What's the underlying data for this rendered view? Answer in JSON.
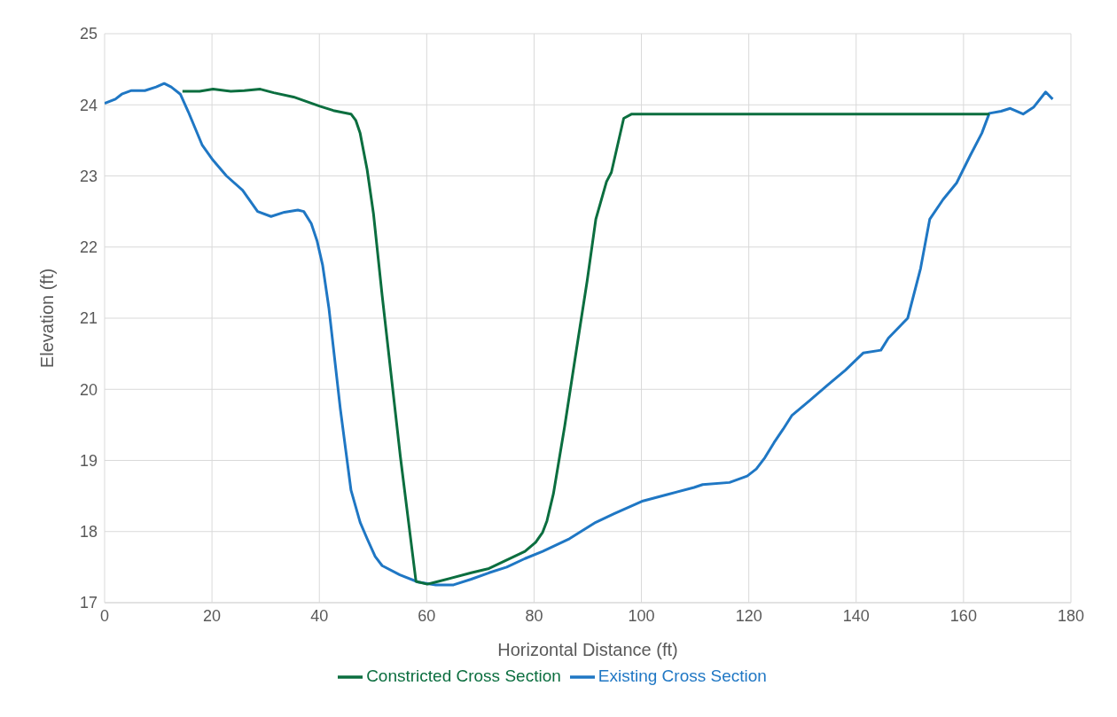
{
  "chart_data": {
    "type": "line",
    "xlabel": "Horizontal Distance (ft)",
    "ylabel": "Elevation (ft)",
    "xlim": [
      0,
      180
    ],
    "xticks": [
      0,
      20,
      40,
      60,
      80,
      100,
      120,
      140,
      160,
      180
    ],
    "ylim": [
      17,
      25
    ],
    "yticks": [
      17,
      18,
      19,
      20,
      21,
      22,
      23,
      24,
      25
    ],
    "grid": true,
    "legend": "bottom",
    "marker": "none",
    "line_style": "solid",
    "series": [
      {
        "name": "Existing Cross Section",
        "color": "#1f77c4",
        "x": [
          0,
          2,
          3.2,
          5,
          7.5,
          9.6,
          11.1,
          12.4,
          14.1,
          15.6,
          18.2,
          20.2,
          22.7,
          25.7,
          28.5,
          31,
          33.5,
          36,
          37.1,
          38.5,
          39.6,
          40.6,
          41.8,
          43.9,
          45.9,
          47.6,
          48.9,
          50.4,
          51.7,
          55,
          58.4,
          61.7,
          65,
          68.3,
          71.6,
          74.9,
          78.3,
          81.6,
          86.6,
          91.5,
          94.9,
          100.3,
          104.8,
          109.8,
          111.4,
          116.4,
          119.7,
          121.4,
          123,
          124.7,
          126.4,
          128,
          131.3,
          134.7,
          138,
          141.3,
          144.6,
          146,
          149.6,
          152,
          153.7,
          156.2,
          158.7,
          161.2,
          163.4,
          164.8,
          167,
          168.7,
          171.1,
          173.1,
          175.3,
          176.6
        ],
        "values": [
          24.02,
          24.08,
          24.15,
          24.2,
          24.2,
          24.25,
          24.3,
          24.25,
          24.15,
          23.9,
          23.43,
          23.22,
          23,
          22.8,
          22.5,
          22.43,
          22.49,
          22.52,
          22.5,
          22.33,
          22.08,
          21.75,
          21.13,
          19.73,
          18.58,
          18.13,
          17.9,
          17.65,
          17.52,
          17.39,
          17.29,
          17.25,
          17.25,
          17.33,
          17.42,
          17.5,
          17.62,
          17.72,
          17.9,
          18.13,
          18.25,
          18.43,
          18.52,
          18.62,
          18.66,
          18.69,
          18.78,
          18.88,
          19.04,
          19.25,
          19.44,
          19.63,
          19.84,
          20.06,
          20.27,
          20.51,
          20.55,
          20.72,
          21,
          21.7,
          22.39,
          22.67,
          22.9,
          23.28,
          23.6,
          23.88,
          23.91,
          23.95,
          23.87,
          23.97,
          24.18,
          24.08
        ]
      },
      {
        "name": "Constricted Cross Section",
        "color": "#0b6e3f",
        "x": [
          14.5,
          17.7,
          20.2,
          23.5,
          26,
          29,
          31.5,
          35.2,
          40.1,
          42.6,
          45.9,
          46.8,
          47.6,
          48.9,
          50.1,
          51.7,
          55.1,
          58,
          60.1,
          61.7,
          68.3,
          71.6,
          78.3,
          80.3,
          81.6,
          82.4,
          83.6,
          85.7,
          87.9,
          89.9,
          91.5,
          93.5,
          94.4,
          96.7,
          98.2,
          111.4,
          164.8
        ],
        "values": [
          24.19,
          24.19,
          24.22,
          24.19,
          24.2,
          24.22,
          24.17,
          24.11,
          23.98,
          23.92,
          23.87,
          23.78,
          23.6,
          23.09,
          22.46,
          21.32,
          19.05,
          17.3,
          17.26,
          17.29,
          17.42,
          17.48,
          17.72,
          17.85,
          17.99,
          18.15,
          18.53,
          19.48,
          20.56,
          21.53,
          22.39,
          22.92,
          23.05,
          23.81,
          23.87,
          23.87,
          23.87
        ]
      }
    ]
  }
}
